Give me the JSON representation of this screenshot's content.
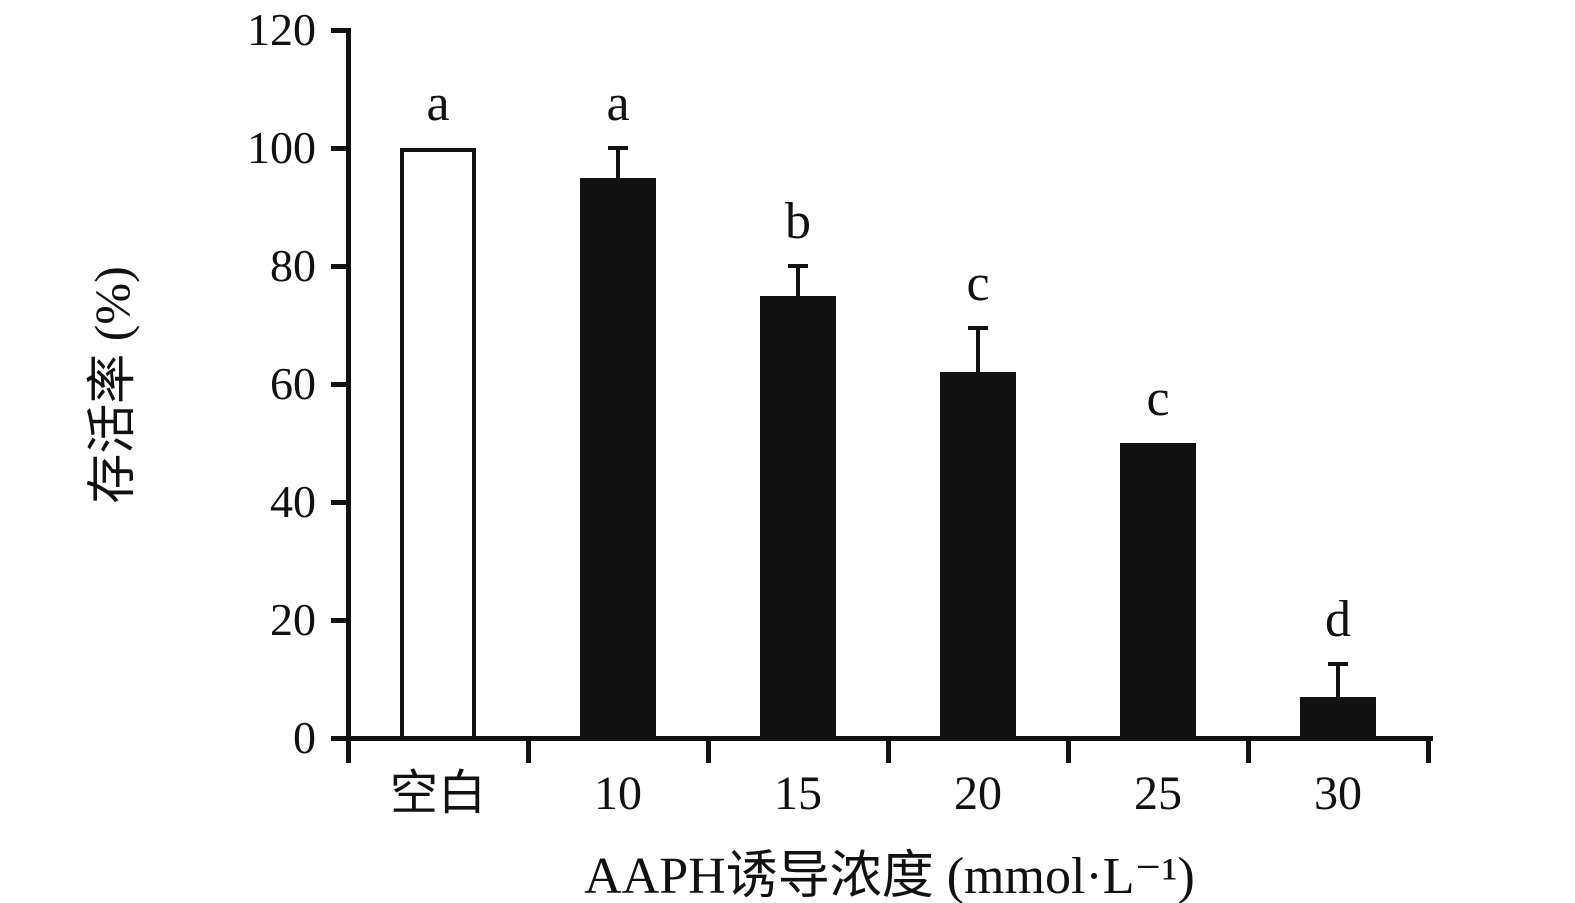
{
  "figure": {
    "background_color": "#ffffff",
    "ink_color": "#111111",
    "open_bar_fill": "#ffffff"
  },
  "chart_data": {
    "type": "bar",
    "title": "",
    "xlabel": "AAPH诱导浓度 (mmol·L⁻¹)",
    "ylabel": "存活率 (%)",
    "ylim": [
      0,
      120
    ],
    "yticks": [
      0,
      20,
      40,
      60,
      80,
      100,
      120
    ],
    "grid": false,
    "legend": "none",
    "categories": [
      "空白",
      "10",
      "15",
      "20",
      "25",
      "30"
    ],
    "values": [
      100,
      95,
      75,
      62,
      50,
      7
    ],
    "errors": [
      0,
      5,
      5,
      7.5,
      0,
      5.5
    ],
    "sig_letters": [
      "a",
      "a",
      "b",
      "c",
      "c",
      "d"
    ],
    "bar_fills": [
      "#ffffff",
      "#111111",
      "#111111",
      "#111111",
      "#111111",
      "#111111"
    ]
  }
}
